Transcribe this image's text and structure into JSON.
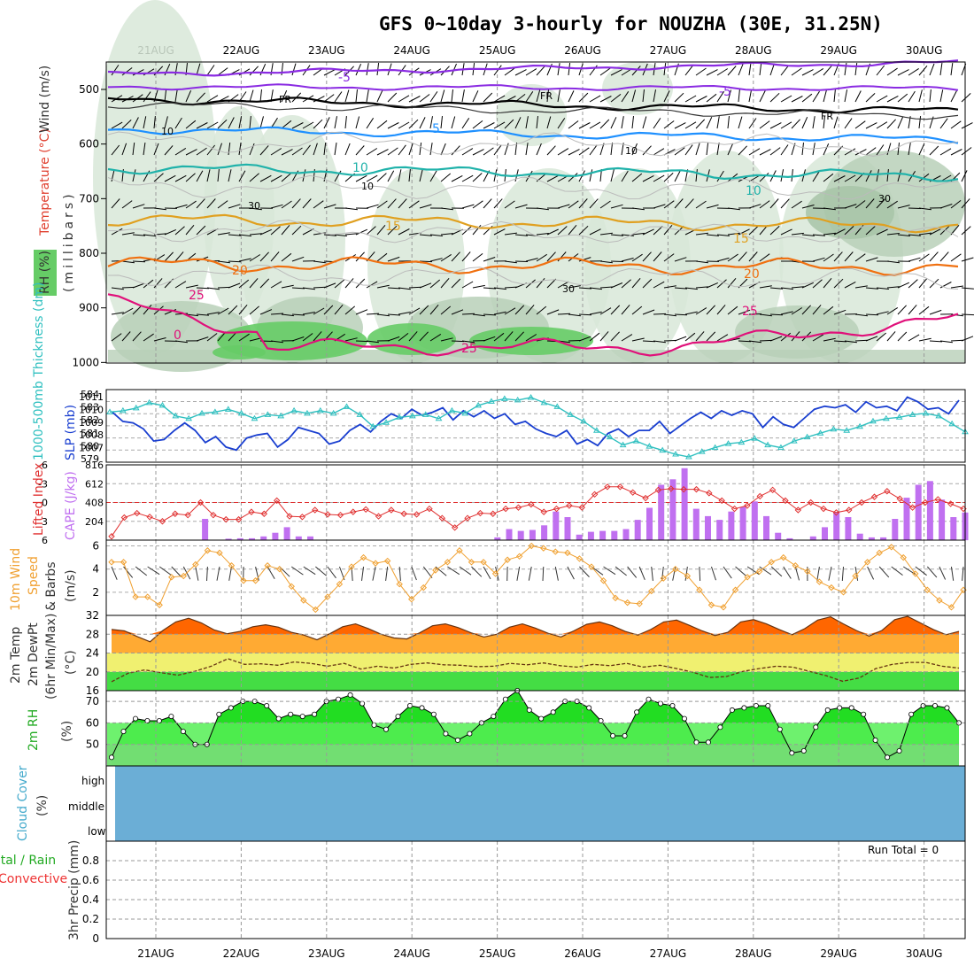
{
  "title": "GFS 0~10day 3-hourly for NOUZHA (30E, 31.25N)",
  "dates": [
    "21AUG",
    "22AUG",
    "23AUG",
    "24AUG",
    "25AUG",
    "26AUG",
    "27AUG",
    "28AUG",
    "29AUG",
    "30AUG"
  ],
  "colors": {
    "purple": "#8a2be2",
    "black": "#000000",
    "blue_iso": "#1e90ff",
    "teal": "#20b2aa",
    "gold": "#e0a020",
    "orange": "#f07010",
    "magenta": "#e0107a",
    "rh_light": "#d8e8d8",
    "rh_mid": "#b8d0b8",
    "rh_green": "#66cc66",
    "slp": "#1a3fd0",
    "thick": "#30c0c0",
    "cape": "#c070f0",
    "li": "#e03030",
    "wind": "#f0a030",
    "temp": "#ff6600",
    "rh2m": "#33dd33",
    "cloud": "#6baed6",
    "rain": "#22aa22",
    "conv": "#ee3333",
    "cyan_lbl": "#44aacc"
  },
  "panels": {
    "upper": {
      "ylabel_wind": "Wind (m/s)",
      "ylabel_temp": "Temperature (°C)",
      "ylabel_rh": "RH (%)",
      "ylabel_mb": "(millibars)",
      "ticks": [
        "500",
        "600",
        "700",
        "800",
        "900",
        "1000"
      ],
      "labels": {
        "m5a": "-5",
        "m5b": "-5",
        "fr1": "FR",
        "fr2": "FR",
        "fr3": "FR",
        "p5": "5",
        "p10a": "10",
        "p10b": "10",
        "p15a": "15",
        "p15b": "15",
        "p20a": "20",
        "p20b": "20",
        "p25a": "25",
        "p25b": "25",
        "p25c": "25",
        "p0": "0",
        "g10a": "10",
        "g10b": "10",
        "g30a": "30",
        "g30b": "30",
        "g30c": "30",
        "g10c": "10"
      }
    },
    "slp": {
      "ylabel_thick": "1000-500mb Thickness (dm)",
      "ylabel_slp": "SLP (mb)",
      "left_ticks": [
        "584",
        "583",
        "582",
        "581",
        "580",
        "579"
      ],
      "right_ticks": [
        "1011",
        "1010",
        "1009",
        "1008",
        "1007"
      ]
    },
    "cape": {
      "ylabel_li": "Lifted Index",
      "ylabel_cape": "CAPE (J/kg)",
      "left_ticks": [
        "-6",
        "-3",
        "0",
        "3",
        "6"
      ],
      "right_ticks": [
        "816",
        "612",
        "408",
        "204"
      ]
    },
    "wind10": {
      "ylabel_a": "10m Wind",
      "ylabel_b": "Speed",
      "ylabel_c": "& Barbs",
      "ylabel_unit": "(m/s)",
      "ticks": [
        "6",
        "4",
        "2"
      ]
    },
    "temp2m": {
      "ylabel_a": "2m Temp",
      "ylabel_b": "2m DewPt",
      "ylabel_c": "(6hr Min/Max)",
      "ylabel_unit": "(°C)",
      "ticks": [
        "32",
        "28",
        "24",
        "20",
        "16"
      ]
    },
    "rh2m": {
      "ylabel": "2m RH",
      "ylabel_unit": "(%)",
      "ticks": [
        "70",
        "60",
        "50"
      ]
    },
    "cloud": {
      "ylabel": "Cloud Cover",
      "ylabel_unit": "(%)",
      "levels": [
        "high",
        "middle",
        "low"
      ]
    },
    "precip": {
      "ylabel_a": "Total / Rain",
      "ylabel_b": "Convective",
      "ylabel_c": "3hr Precip (mm)",
      "ticks": [
        "0.8",
        "0.6",
        "0.4",
        "0.2",
        "0"
      ],
      "run_total": "Run Total = 0"
    }
  },
  "chart_data": [
    {
      "type": "line",
      "title": "SLP (mb)",
      "x": "3-hourly steps, 21AUG..30AUG",
      "series": [
        {
          "name": "SLP",
          "values": [
            1009.8,
            1009.2,
            1009.1,
            1008.7,
            1007.9,
            1008.0,
            1008.6,
            1009.1,
            1008.6,
            1007.8,
            1008.2,
            1007.5,
            1007.3,
            1008.1,
            1008.3,
            1008.4,
            1007.5,
            1008.0,
            1008.8,
            1008.6,
            1008.4,
            1007.7,
            1007.9,
            1008.6,
            1009.0,
            1008.5,
            1009.2,
            1009.7,
            1009.4,
            1010.0,
            1009.6,
            1009.8,
            1010.1,
            1009.3,
            1009.9,
            1009.5,
            1009.9,
            1009.4,
            1009.7,
            1009.0,
            1009.2,
            1008.7,
            1008.4,
            1008.2,
            1008.6,
            1007.7,
            1008.0,
            1007.6,
            1008.4,
            1008.7,
            1008.2,
            1008.6,
            1008.6,
            1009.2,
            1008.4,
            1008.9,
            1009.4,
            1009.8,
            1009.4,
            1009.9,
            1009.6,
            1009.9,
            1009.7,
            1008.8,
            1009.5,
            1009.0,
            1008.8,
            1009.4,
            1010.0,
            1010.2,
            1010.1,
            1010.3,
            1009.8,
            1010.5,
            1010.1,
            1010.2,
            1009.9,
            1010.8,
            1010.5,
            1010.0,
            1010.1,
            1009.7,
            1010.6
          ]
        },
        {
          "name": "1000-500mb Thickness (dm)",
          "values": [
            582.8,
            582.9,
            583.1,
            583.5,
            583.3,
            582.5,
            582.3,
            582.7,
            582.8,
            583.0,
            582.7,
            582.3,
            582.6,
            582.5,
            582.9,
            582.7,
            582.9,
            582.7,
            583.2,
            582.6,
            581.7,
            582.0,
            582.4,
            582.5,
            582.6,
            582.3,
            582.9,
            582.7,
            583.3,
            583.6,
            583.8,
            583.7,
            583.9,
            583.5,
            583.2,
            582.6,
            582.1,
            581.4,
            580.9,
            580.3,
            580.6,
            580.2,
            579.9,
            579.6,
            579.4,
            579.8,
            580.1,
            580.4,
            580.5,
            580.8,
            580.3,
            580.1,
            580.6,
            580.9,
            581.2,
            581.5,
            581.4,
            581.7,
            582.1,
            582.3,
            582.4,
            582.6,
            582.7,
            582.5,
            581.9,
            581.3
          ]
        }
      ],
      "ylim_left": [
        579,
        584.5
      ],
      "ylim_right": [
        1006.5,
        1011.3
      ]
    },
    {
      "type": "bar",
      "title": "CAPE (J/kg) / Lifted Index",
      "series": [
        {
          "name": "CAPE",
          "values": [
            0,
            0,
            0,
            0,
            0,
            0,
            0,
            0,
            230,
            0,
            15,
            20,
            20,
            40,
            80,
            140,
            40,
            40,
            0,
            0,
            0,
            0,
            0,
            0,
            0,
            0,
            0,
            0,
            0,
            0,
            0,
            0,
            0,
            30,
            120,
            100,
            110,
            160,
            310,
            250,
            60,
            90,
            100,
            100,
            120,
            220,
            350,
            600,
            660,
            780,
            340,
            260,
            220,
            310,
            360,
            420,
            260,
            80,
            20,
            0,
            40,
            140,
            300,
            250,
            70,
            30,
            30,
            230,
            460,
            600,
            640,
            440,
            250,
            300
          ]
        },
        {
          "name": "Lifted Index",
          "values": [
            5.4,
            2.4,
            1.7,
            2.3,
            3.0,
            1.8,
            2.0,
            0.0,
            2.0,
            2.7,
            2.7,
            1.5,
            1.8,
            -0.3,
            2.2,
            2.3,
            1.2,
            1.9,
            2.0,
            1.5,
            1.1,
            2.2,
            1.2,
            1.8,
            1.9,
            1.0,
            2.5,
            4.0,
            2.5,
            1.7,
            1.8,
            1.0,
            0.8,
            0.3,
            1.5,
            1.0,
            0.5,
            0.8,
            -1.3,
            -2.5,
            -2.5,
            -1.6,
            -0.7,
            -2.0,
            -2.2,
            -2.1,
            -2.1,
            -1.5,
            -0.3,
            1.0,
            0.5,
            -1.0,
            -2.0,
            -0.3,
            1.2,
            0.0,
            1.0,
            1.6,
            1.2,
            0.0,
            -0.9,
            -1.8,
            -0.6,
            0.8,
            0.0,
            -0.5,
            0.2,
            1.0
          ]
        }
      ],
      "ylim_cape": [
        0,
        816
      ],
      "ylim_li": [
        6,
        -6
      ]
    },
    {
      "type": "line",
      "title": "10m Wind Speed (m/s)",
      "series": [
        {
          "name": "Speed",
          "values": [
            4.6,
            4.6,
            1.6,
            1.6,
            0.9,
            3.3,
            3.4,
            4.4,
            5.6,
            5.4,
            4.3,
            3.0,
            3.0,
            4.3,
            4.0,
            2.5,
            1.3,
            0.5,
            1.6,
            2.7,
            4.2,
            5.0,
            4.5,
            4.7,
            2.7,
            1.4,
            2.4,
            3.9,
            4.6,
            5.6,
            4.6,
            4.6,
            3.6,
            4.8,
            5.1,
            6.0,
            5.8,
            5.5,
            5.4,
            4.9,
            4.2,
            3.0,
            1.5,
            1.1,
            1.0,
            2.1,
            3.2,
            4.0,
            3.4,
            2.2,
            0.9,
            0.7,
            2.2,
            3.3,
            3.8,
            4.6,
            5.0,
            4.3,
            3.8,
            2.9,
            2.4,
            2.0,
            3.4,
            4.6,
            5.4,
            5.9,
            5.0,
            3.6,
            2.2,
            1.3,
            0.7,
            2.2
          ]
        }
      ],
      "ylim": [
        0,
        6.5
      ]
    },
    {
      "type": "area",
      "title": "2m Temp / 2m DewPt (°C)",
      "series": [
        {
          "name": "2m Temp",
          "values": [
            29.0,
            28.7,
            27.5,
            26.4,
            28.8,
            30.6,
            31.4,
            30.4,
            28.9,
            28.1,
            28.6,
            29.6,
            30.0,
            29.5,
            28.4,
            27.8,
            26.8,
            28.1,
            29.6,
            30.2,
            29.2,
            28.0,
            27.2,
            27.0,
            28.3,
            29.8,
            30.2,
            29.4,
            28.3,
            27.4,
            28.0,
            29.5,
            30.2,
            29.3,
            28.2,
            27.4,
            28.7,
            30.1,
            30.6,
            29.8,
            28.6,
            27.8,
            29.0,
            30.6,
            31.0,
            29.9,
            28.7,
            27.7,
            28.4,
            30.6,
            31.1,
            30.2,
            29.0,
            27.9,
            29.2,
            31.0,
            31.7,
            30.2,
            28.8,
            27.6,
            28.8,
            31.1,
            31.8,
            30.4,
            29.0,
            27.9,
            28.6
          ]
        },
        {
          "name": "2m DewPt",
          "values": [
            17.9,
            19.7,
            20.4,
            19.8,
            19.3,
            20.1,
            21.2,
            22.8,
            21.6,
            21.7,
            21.4,
            22.1,
            21.8,
            21.2,
            21.8,
            20.6,
            21.2,
            20.8,
            21.6,
            21.9,
            21.5,
            21.4,
            21.1,
            21.2,
            21.8,
            21.5,
            21.9,
            21.3,
            21.0,
            21.6,
            21.3,
            21.8,
            21.0,
            21.4,
            20.7,
            19.9,
            18.8,
            19.0,
            20.1,
            20.7,
            21.2,
            21.0,
            20.1,
            19.2,
            18.0,
            18.7,
            20.7,
            21.6,
            22.0,
            22.0,
            21.2,
            20.8
          ]
        }
      ],
      "ylim": [
        16,
        32
      ]
    },
    {
      "type": "area",
      "title": "2m RH (%)",
      "series": [
        {
          "name": "2m RH",
          "values": [
            44,
            56,
            62,
            61,
            61,
            63,
            56,
            50,
            50,
            64,
            67,
            70,
            70,
            68,
            62,
            64,
            63,
            64,
            70,
            71,
            73,
            69,
            59,
            57,
            63,
            68,
            67,
            64,
            55,
            52,
            55,
            60,
            63,
            71,
            75,
            66,
            62,
            65,
            70,
            70,
            67,
            61,
            54,
            54,
            65,
            71,
            69,
            68,
            62,
            51,
            51,
            58,
            66,
            67,
            68,
            68,
            57,
            46,
            47,
            58,
            66,
            67,
            67,
            64,
            52,
            44,
            47,
            64,
            68,
            68,
            67,
            60
          ]
        }
      ],
      "ylim": [
        40,
        75
      ]
    },
    {
      "type": "bar",
      "title": "3hr Precip (mm)",
      "series": [
        {
          "name": "Total / Rain",
          "values": []
        },
        {
          "name": "Convective",
          "values": []
        }
      ],
      "ylim": [
        0,
        1
      ]
    }
  ]
}
